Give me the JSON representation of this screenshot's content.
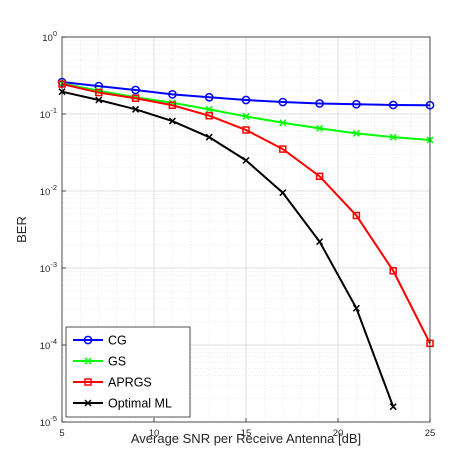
{
  "chart_data": {
    "type": "line",
    "title": "",
    "xlabel": "Average SNR per Receive Antenna [dB]",
    "ylabel": "BER",
    "xlim": [
      5,
      25
    ],
    "ylim": [
      1e-05,
      1
    ],
    "yscale": "log",
    "grid": true,
    "minor_grid": true,
    "legend_position": "bottom-left",
    "x_ticks": [
      "5",
      "10",
      "15",
      "20",
      "25"
    ],
    "y_ticks": [
      {
        "base": "10",
        "exp": "-5"
      },
      {
        "base": "10",
        "exp": "-4"
      },
      {
        "base": "10",
        "exp": "-3"
      },
      {
        "base": "10",
        "exp": "-2"
      },
      {
        "base": "10",
        "exp": "-1"
      },
      {
        "base": "10",
        "exp": "0"
      }
    ],
    "series": [
      {
        "name": "CG",
        "color": "#0000ff",
        "marker": "circle",
        "x": [
          5,
          7,
          9,
          11,
          13,
          15,
          17,
          19,
          21,
          23,
          25
        ],
        "y": [
          0.26,
          0.23,
          0.205,
          0.18,
          0.165,
          0.152,
          0.143,
          0.137,
          0.134,
          0.131,
          0.13
        ]
      },
      {
        "name": "GS",
        "color": "#00ff00",
        "marker": "x",
        "x": [
          5,
          7,
          9,
          11,
          13,
          15,
          17,
          19,
          21,
          23,
          25
        ],
        "y": [
          0.25,
          0.2,
          0.165,
          0.14,
          0.115,
          0.093,
          0.077,
          0.065,
          0.056,
          0.05,
          0.046
        ]
      },
      {
        "name": "APRGS",
        "color": "#ff0000",
        "marker": "square",
        "x": [
          5,
          7,
          9,
          11,
          13,
          15,
          17,
          19,
          21,
          23,
          25
        ],
        "y": [
          0.245,
          0.19,
          0.16,
          0.13,
          0.095,
          0.062,
          0.035,
          0.0155,
          0.0048,
          0.00092,
          0.000105
        ]
      },
      {
        "name": "Optimal ML",
        "color": "#000000",
        "marker": "x",
        "x": [
          5,
          7,
          9,
          11,
          13,
          15,
          17,
          19,
          21,
          23
        ],
        "y": [
          0.195,
          0.152,
          0.115,
          0.081,
          0.05,
          0.025,
          0.0095,
          0.0022,
          0.0003,
          1.58e-05
        ]
      }
    ]
  }
}
